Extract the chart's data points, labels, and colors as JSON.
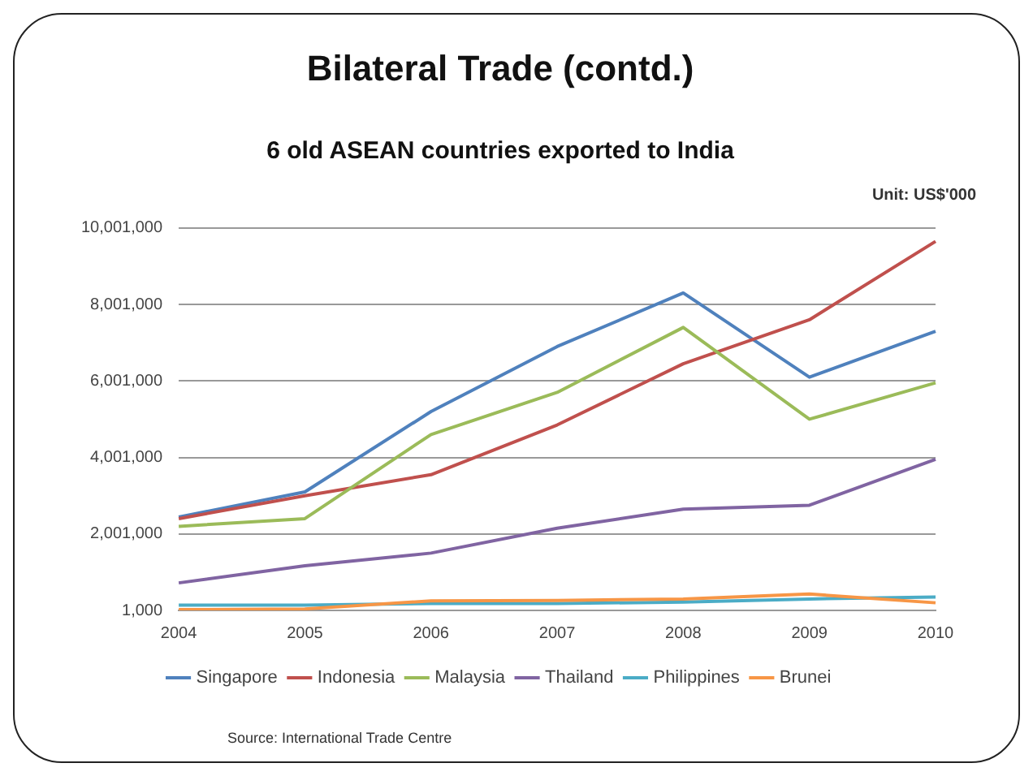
{
  "chart_data": {
    "type": "line",
    "title": "Bilateral Trade (contd.)",
    "subtitle": "6 old ASEAN countries exported to India",
    "annotations": [
      "Unit: US$'000",
      "Source: International Trade Centre"
    ],
    "categories": [
      "2004",
      "2005",
      "2006",
      "2007",
      "2008",
      "2009",
      "2010"
    ],
    "series": [
      {
        "name": "Singapore",
        "color": "#4f81bd",
        "values": [
          2440000,
          3100000,
          5200000,
          6900000,
          8300000,
          6100000,
          7300000
        ]
      },
      {
        "name": "Indonesia",
        "color": "#c0504d",
        "values": [
          2400000,
          3000000,
          3550000,
          4850000,
          6450000,
          7600000,
          9650000
        ]
      },
      {
        "name": "Malaysia",
        "color": "#9bbb59",
        "values": [
          2200000,
          2400000,
          4600000,
          5700000,
          7400000,
          5000000,
          5950000
        ]
      },
      {
        "name": "Thailand",
        "color": "#8064a2",
        "values": [
          720000,
          1170000,
          1500000,
          2150000,
          2650000,
          2750000,
          3950000
        ]
      },
      {
        "name": "Philippines",
        "color": "#4bacc6",
        "values": [
          140000,
          140000,
          180000,
          180000,
          220000,
          300000,
          350000
        ]
      },
      {
        "name": "Brunei",
        "color": "#f79646",
        "values": [
          20000,
          40000,
          250000,
          260000,
          300000,
          430000,
          200000
        ]
      }
    ],
    "ylim": [
      1000,
      10001000
    ],
    "yticks": [
      {
        "value": 1000,
        "label": "1,000"
      },
      {
        "value": 2001000,
        "label": "2,001,000"
      },
      {
        "value": 4001000,
        "label": "4,001,000"
      },
      {
        "value": 6001000,
        "label": "6,001,000"
      },
      {
        "value": 8001000,
        "label": "8,001,000"
      },
      {
        "value": 10001000,
        "label": "10,001,000"
      }
    ],
    "grid": "y",
    "legend": "bottom",
    "marker": "none",
    "line_style": "solid"
  }
}
